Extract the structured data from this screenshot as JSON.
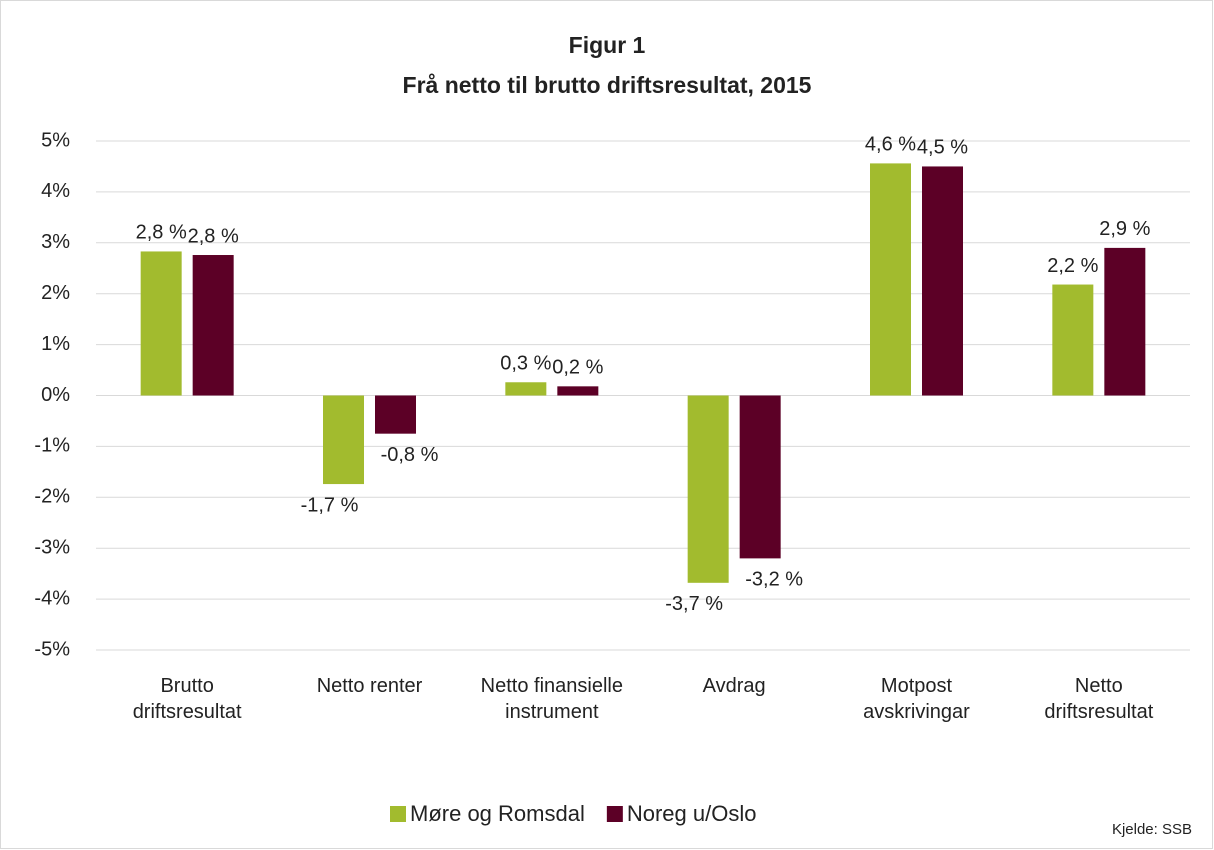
{
  "chart_data": {
    "type": "bar",
    "title": "Figur 1",
    "subtitle": "Frå netto til brutto driftsresultat, 2015",
    "categories": [
      "Brutto driftsresultat",
      "Netto renter",
      "Netto finansielle instrument",
      "Avdrag",
      "Motpost avskrivingar",
      "Netto driftsresultat"
    ],
    "series": [
      {
        "name": "Møre og Romsdal",
        "color": "#a2bb2e",
        "values": [
          2.83,
          -1.74,
          0.26,
          -3.68,
          4.56,
          2.18
        ],
        "value_labels": [
          "2,8 %",
          "-1,7 %",
          "0,3 %",
          "-3,7 %",
          "4,6 %",
          "2,2 %"
        ]
      },
      {
        "name": "Noreg u/Oslo",
        "color": "#5c0026",
        "values": [
          2.76,
          -0.75,
          0.18,
          -3.2,
          4.5,
          2.9
        ],
        "value_labels": [
          "2,8 %",
          "-0,8 %",
          "0,2 %",
          "-3,2 %",
          "4,5 %",
          "2,9 %"
        ]
      }
    ],
    "ylim": [
      -5,
      5
    ],
    "yticks": [
      {
        "value": -5,
        "label": "-5%"
      },
      {
        "value": -4,
        "label": "-4%"
      },
      {
        "value": -3,
        "label": "-3%"
      },
      {
        "value": -2,
        "label": "-2%"
      },
      {
        "value": -1,
        "label": "-1%"
      },
      {
        "value": 0,
        "label": "0%"
      },
      {
        "value": 1,
        "label": "1%"
      },
      {
        "value": 2,
        "label": "2%"
      },
      {
        "value": 3,
        "label": "3%"
      },
      {
        "value": 4,
        "label": "4%"
      },
      {
        "value": 5,
        "label": "5%"
      }
    ],
    "grid": true,
    "legend": "bottom",
    "source": "Kjelde: SSB"
  }
}
